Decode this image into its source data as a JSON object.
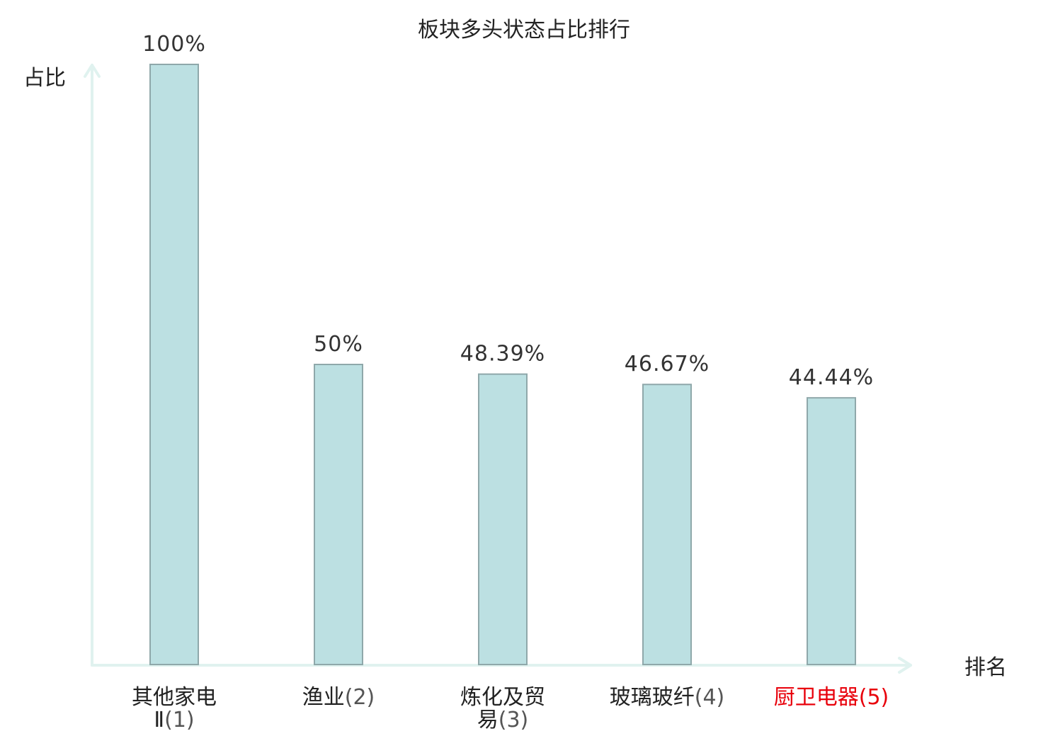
{
  "colors": {
    "bar_fill": "#bce0e2",
    "bar_stroke": "#8fa8aa",
    "axis": "#e0f2ef",
    "highlight": "#e8000b"
  },
  "chart_data": {
    "type": "bar",
    "title": "板块多头状态占比排行",
    "ylabel": "占比",
    "xlabel": "排名",
    "ylim": [
      0,
      100
    ],
    "grid": false,
    "categories": [
      {
        "lines": [
          "其他家电",
          "Ⅱ"
        ],
        "rank": "(1)",
        "highlight": false
      },
      {
        "lines": [
          "渔业"
        ],
        "rank": "(2)",
        "highlight": false
      },
      {
        "lines": [
          "炼化及贸",
          "易"
        ],
        "rank": "(3)",
        "highlight": false
      },
      {
        "lines": [
          "玻璃玻纤"
        ],
        "rank": "(4)",
        "highlight": false
      },
      {
        "lines": [
          "厨卫电器"
        ],
        "rank": "(5)",
        "highlight": true
      }
    ],
    "values": [
      100,
      50,
      48.39,
      46.67,
      44.44
    ],
    "value_labels": [
      "100%",
      "50%",
      "48.39%",
      "46.67%",
      "44.44%"
    ]
  }
}
